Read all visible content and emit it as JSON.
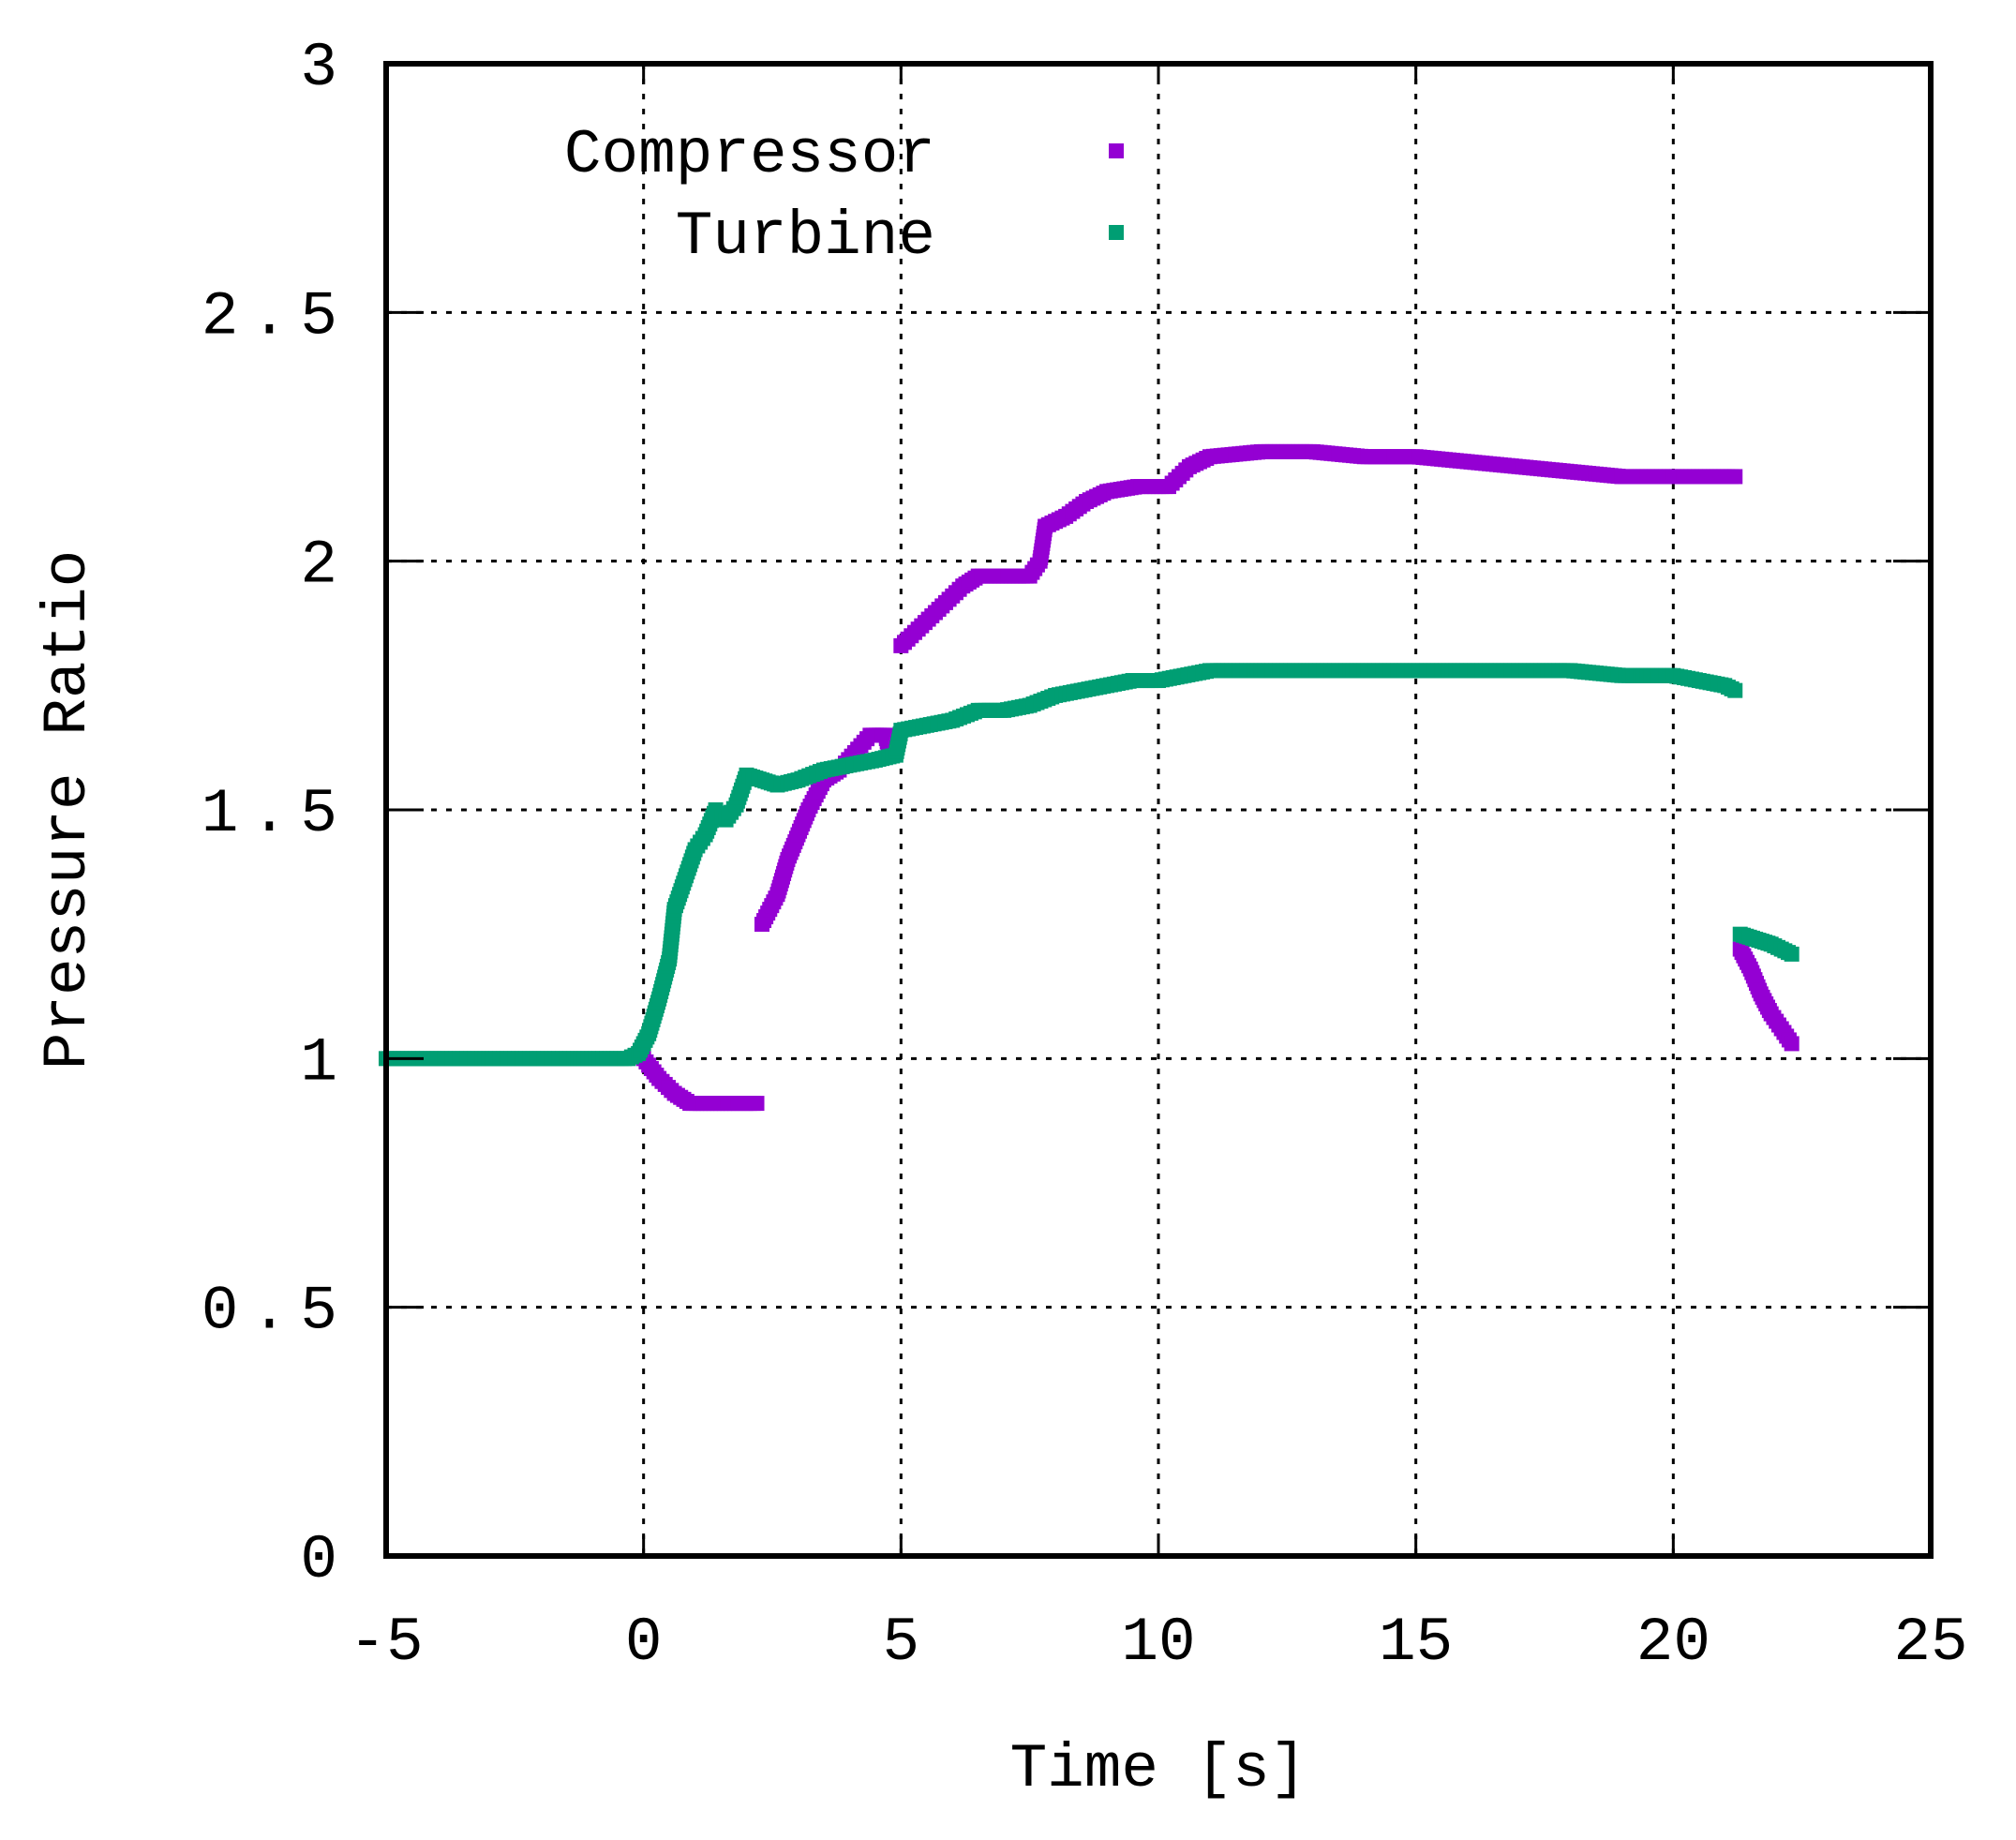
{
  "chart_data": {
    "type": "scatter",
    "title": "",
    "xlabel": "Time [s]",
    "ylabel": "Pressure Ratio",
    "xlim": [
      -5,
      25
    ],
    "ylim": [
      0,
      3
    ],
    "x_ticks": [
      "-5",
      "0",
      "5",
      "10",
      "15",
      "20",
      "25"
    ],
    "y_ticks": [
      "0",
      "0.5",
      "1",
      "1.5",
      "2",
      "2.5",
      "3"
    ],
    "grid": true,
    "legend_position": "top-left",
    "series": [
      {
        "name": "Compressor",
        "color": "#9400D3",
        "points": [
          [
            0.0,
            1.0
          ],
          [
            0.3,
            0.96
          ],
          [
            0.6,
            0.93
          ],
          [
            0.9,
            0.91
          ],
          [
            1.3,
            0.91
          ],
          [
            1.7,
            0.91
          ],
          [
            2.2,
            0.91
          ],
          [
            2.3,
            1.27
          ],
          [
            2.6,
            1.33
          ],
          [
            2.8,
            1.4
          ],
          [
            3.0,
            1.45
          ],
          [
            3.2,
            1.5
          ],
          [
            3.5,
            1.56
          ],
          [
            3.8,
            1.58
          ],
          [
            4.4,
            1.65
          ],
          [
            4.7,
            1.65
          ],
          [
            4.8,
            1.61
          ],
          [
            5.0,
            1.83
          ],
          [
            5.4,
            1.87
          ],
          [
            5.8,
            1.91
          ],
          [
            6.2,
            1.95
          ],
          [
            6.5,
            1.97
          ],
          [
            7.0,
            1.97
          ],
          [
            7.5,
            1.97
          ],
          [
            7.7,
            2.0
          ],
          [
            7.8,
            2.07
          ],
          [
            8.2,
            2.09
          ],
          [
            8.6,
            2.12
          ],
          [
            9.0,
            2.14
          ],
          [
            9.6,
            2.15
          ],
          [
            10.2,
            2.15
          ],
          [
            10.6,
            2.19
          ],
          [
            11.0,
            2.21
          ],
          [
            12.0,
            2.22
          ],
          [
            13.0,
            2.22
          ],
          [
            14.0,
            2.21
          ],
          [
            15.0,
            2.21
          ],
          [
            16.0,
            2.2
          ],
          [
            17.0,
            2.19
          ],
          [
            18.0,
            2.18
          ],
          [
            19.0,
            2.17
          ],
          [
            20.0,
            2.17
          ],
          [
            21.2,
            2.17
          ],
          [
            21.3,
            1.22
          ],
          [
            21.5,
            1.18
          ],
          [
            21.7,
            1.13
          ],
          [
            21.9,
            1.09
          ],
          [
            22.1,
            1.06
          ],
          [
            22.3,
            1.03
          ]
        ]
      },
      {
        "name": "Turbine",
        "color": "#009E73",
        "points": [
          [
            -5.0,
            1.0
          ],
          [
            -4.0,
            1.0
          ],
          [
            -3.0,
            1.0
          ],
          [
            -2.0,
            1.0
          ],
          [
            -1.0,
            1.0
          ],
          [
            -0.3,
            1.0
          ],
          [
            -0.1,
            1.01
          ],
          [
            0.1,
            1.05
          ],
          [
            0.3,
            1.12
          ],
          [
            0.5,
            1.2
          ],
          [
            0.6,
            1.3
          ],
          [
            0.8,
            1.36
          ],
          [
            1.0,
            1.42
          ],
          [
            1.2,
            1.45
          ],
          [
            1.4,
            1.5
          ],
          [
            1.6,
            1.48
          ],
          [
            1.8,
            1.51
          ],
          [
            2.0,
            1.57
          ],
          [
            2.3,
            1.56
          ],
          [
            2.6,
            1.55
          ],
          [
            3.0,
            1.56
          ],
          [
            3.5,
            1.58
          ],
          [
            4.0,
            1.59
          ],
          [
            4.5,
            1.6
          ],
          [
            4.9,
            1.61
          ],
          [
            5.0,
            1.66
          ],
          [
            5.5,
            1.67
          ],
          [
            6.0,
            1.68
          ],
          [
            6.5,
            1.7
          ],
          [
            7.0,
            1.7
          ],
          [
            7.5,
            1.71
          ],
          [
            8.0,
            1.73
          ],
          [
            8.5,
            1.74
          ],
          [
            9.0,
            1.75
          ],
          [
            9.5,
            1.76
          ],
          [
            10.0,
            1.76
          ],
          [
            10.5,
            1.77
          ],
          [
            11.0,
            1.78
          ],
          [
            12.0,
            1.78
          ],
          [
            13.0,
            1.78
          ],
          [
            14.0,
            1.78
          ],
          [
            15.0,
            1.78
          ],
          [
            16.0,
            1.78
          ],
          [
            17.0,
            1.78
          ],
          [
            18.0,
            1.78
          ],
          [
            19.0,
            1.77
          ],
          [
            20.0,
            1.77
          ],
          [
            20.5,
            1.76
          ],
          [
            21.0,
            1.75
          ],
          [
            21.2,
            1.74
          ],
          [
            21.3,
            1.25
          ],
          [
            21.6,
            1.24
          ],
          [
            21.9,
            1.23
          ],
          [
            22.3,
            1.21
          ]
        ]
      }
    ]
  }
}
